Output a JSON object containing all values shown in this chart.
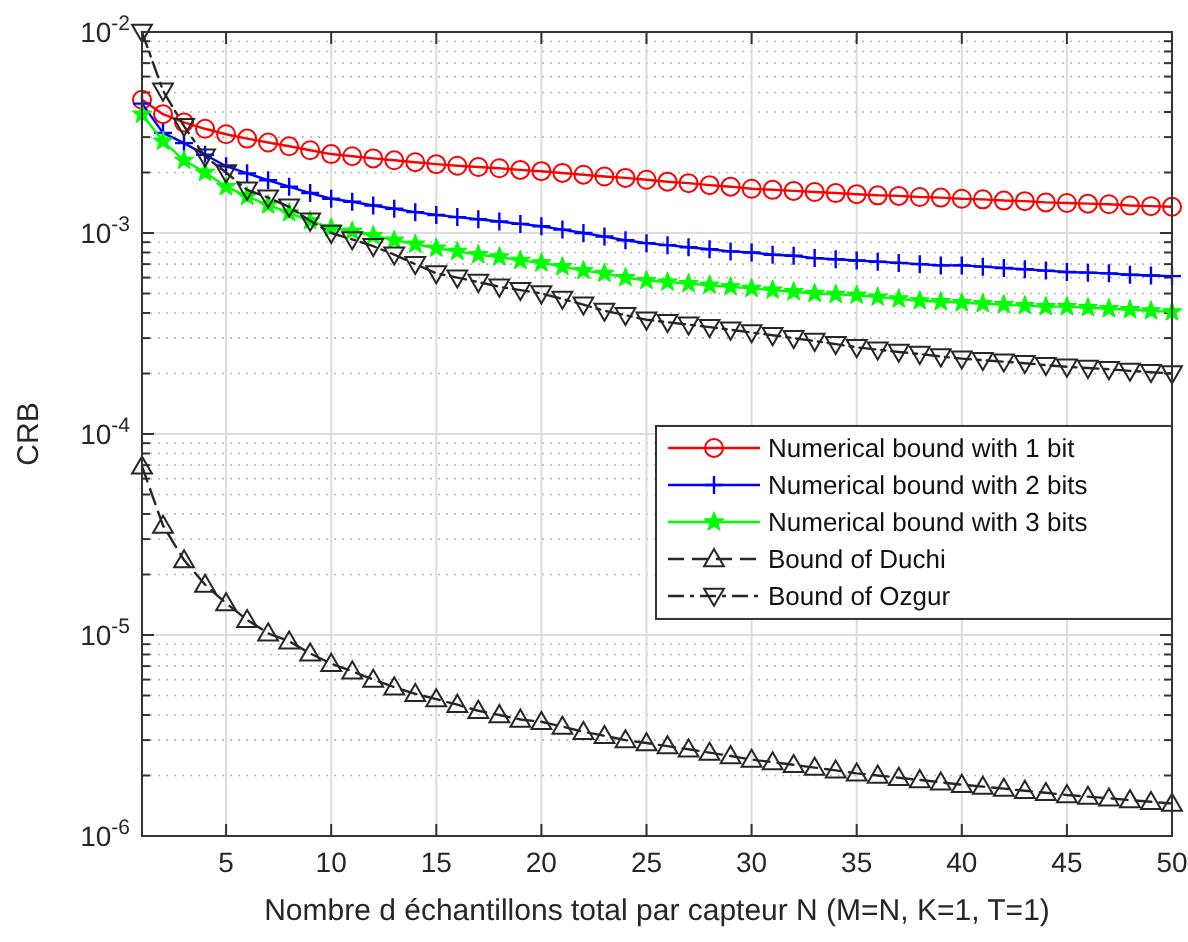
{
  "chart_data": {
    "type": "line",
    "xlabel": "Nombre d échantillons total par capteur N (M=N, K=1, T=1)",
    "ylabel": "CRB",
    "x": [
      1,
      2,
      3,
      4,
      5,
      6,
      7,
      8,
      9,
      10,
      11,
      12,
      13,
      14,
      15,
      16,
      17,
      18,
      19,
      20,
      21,
      22,
      23,
      24,
      25,
      26,
      27,
      28,
      29,
      30,
      31,
      32,
      33,
      34,
      35,
      36,
      37,
      38,
      39,
      40,
      41,
      42,
      43,
      44,
      45,
      46,
      47,
      48,
      49,
      50
    ],
    "xlim": [
      1,
      50
    ],
    "xticks": [
      5,
      10,
      15,
      20,
      25,
      30,
      35,
      40,
      45,
      50
    ],
    "ylim": [
      1e-06,
      0.01
    ],
    "yticks": [
      {
        "value": 1e-06,
        "label": "10$^{-6}$"
      },
      {
        "value": 1e-05,
        "label": "10$^{-5}$"
      },
      {
        "value": 0.0001,
        "label": "10$^{-4}$"
      },
      {
        "value": 0.001,
        "label": "10$^{-3}$"
      },
      {
        "value": 0.01,
        "label": "10$^{-2}$"
      }
    ],
    "log": "y",
    "grid": true,
    "legend": "right",
    "series": [
      {
        "name": "Numerical bound with 1 bit",
        "color": "#ff0000",
        "marker": "circle",
        "line_style": "solid",
        "values": [
          0.0046,
          0.0039,
          0.00355,
          0.0033,
          0.0031,
          0.00295,
          0.00282,
          0.0027,
          0.00258,
          0.00247,
          0.00241,
          0.00235,
          0.0023,
          0.00225,
          0.0022,
          0.00216,
          0.00213,
          0.0021,
          0.00206,
          0.00203,
          0.00199,
          0.00195,
          0.00191,
          0.00188,
          0.00184,
          0.0018,
          0.00177,
          0.00173,
          0.0017,
          0.00166,
          0.00164,
          0.00162,
          0.0016,
          0.00158,
          0.00156,
          0.00154,
          0.00153,
          0.00151,
          0.0015,
          0.00148,
          0.00147,
          0.00145,
          0.00144,
          0.00142,
          0.00141,
          0.0014,
          0.00139,
          0.00137,
          0.00136,
          0.00135
        ]
      },
      {
        "name": "Numerical bound with 2 bits",
        "color": "#0000ff",
        "marker": "cross",
        "line_style": "solid",
        "values": [
          0.0044,
          0.00315,
          0.0028,
          0.00245,
          0.00215,
          0.00198,
          0.00183,
          0.0017,
          0.00158,
          0.00148,
          0.00143,
          0.00137,
          0.00132,
          0.00127,
          0.00123,
          0.0012,
          0.00117,
          0.00114,
          0.00111,
          0.00108,
          0.00104,
          0.001,
          0.00096,
          0.00092,
          0.00089,
          0.00087,
          0.00085,
          0.00083,
          0.00081,
          0.0008,
          0.00078,
          0.00077,
          0.00075,
          0.00074,
          0.00073,
          0.00072,
          0.00071,
          0.0007,
          0.00069,
          0.00069,
          0.00068,
          0.00067,
          0.00066,
          0.00065,
          0.00064,
          0.000635,
          0.00063,
          0.00062,
          0.000615,
          0.00061
        ]
      },
      {
        "name": "Numerical bound with 3 bits",
        "color": "#00ff00",
        "marker": "star",
        "line_style": "solid",
        "values": [
          0.0039,
          0.00286,
          0.0023,
          0.002,
          0.0017,
          0.00152,
          0.00138,
          0.00126,
          0.00115,
          0.00106,
          0.00102,
          0.00097,
          0.00092,
          0.00088,
          0.00084,
          0.00081,
          0.00078,
          0.00076,
          0.00073,
          0.00071,
          0.00068,
          0.00065,
          0.00063,
          0.0006,
          0.00058,
          0.00057,
          0.00056,
          0.00055,
          0.00054,
          0.00053,
          0.00052,
          0.00051,
          0.0005,
          0.000495,
          0.00049,
          0.00048,
          0.00047,
          0.00046,
          0.000455,
          0.00045,
          0.000445,
          0.00044,
          0.000435,
          0.00043,
          0.00043,
          0.000425,
          0.00042,
          0.000415,
          0.00041,
          0.000405
        ]
      },
      {
        "name": "Bound of Duchi",
        "color": "#262626",
        "marker": "triangle",
        "line_style": "dashed",
        "values": [
          6.9e-05,
          3.5e-05,
          2.36e-05,
          1.78e-05,
          1.44e-05,
          1.19e-05,
          1.02e-05,
          9.3e-06,
          8.1e-06,
          7.2e-06,
          6.6e-06,
          6e-06,
          5.5e-06,
          5.1e-06,
          4.8e-06,
          4.5e-06,
          4.2e-06,
          4e-06,
          3.8e-06,
          3.7e-06,
          3.5e-06,
          3.3e-06,
          3.15e-06,
          3e-06,
          2.9e-06,
          2.8e-06,
          2.7e-06,
          2.6e-06,
          2.5e-06,
          2.4e-06,
          2.33e-06,
          2.26e-06,
          2.19e-06,
          2.12e-06,
          2.05e-06,
          2e-06,
          1.95e-06,
          1.9e-06,
          1.85e-06,
          1.8e-06,
          1.76e-06,
          1.72e-06,
          1.68e-06,
          1.64e-06,
          1.6e-06,
          1.57e-06,
          1.54e-06,
          1.51e-06,
          1.48e-06,
          1.45e-06
        ]
      },
      {
        "name": "Bound of Ozgur",
        "color": "#262626",
        "marker": "triangle-down",
        "line_style": "dashdot",
        "values": [
          0.01,
          0.0051,
          0.0034,
          0.0024,
          0.002,
          0.00164,
          0.0015,
          0.00135,
          0.00115,
          0.001,
          0.00093,
          0.00086,
          0.00078,
          0.0007,
          0.00063,
          0.0006,
          0.00057,
          0.00054,
          0.00052,
          0.0005,
          0.00047,
          0.00044,
          0.00041,
          0.00039,
          0.00037,
          0.00036,
          0.00035,
          0.00034,
          0.00033,
          0.00032,
          0.00031,
          0.0003,
          0.00029,
          0.00028,
          0.00027,
          0.000263,
          0.000256,
          0.00025,
          0.000243,
          0.000237,
          0.000233,
          0.000229,
          0.000225,
          0.00022,
          0.000216,
          0.000213,
          0.00021,
          0.000206,
          0.000203,
          0.0002
        ]
      }
    ]
  }
}
